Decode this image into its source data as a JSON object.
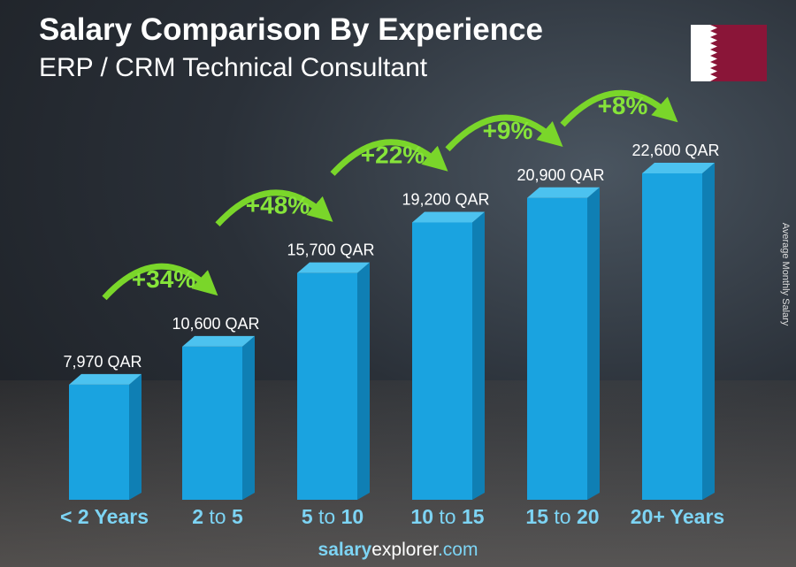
{
  "title": "Salary Comparison By Experience",
  "subtitle": "ERP / CRM Technical Consultant",
  "y_axis_label": "Average Monthly Salary",
  "footer": {
    "bold": "salary",
    "rest": "explorer",
    "tld": ".com"
  },
  "colors": {
    "bar": "#1aa3e0",
    "bar_side": "#0f7fb4",
    "bar_top": "#4cc2ef",
    "arrow": "#7ad62a",
    "label": "#7dd4f4"
  },
  "chart_data": {
    "type": "bar",
    "title": "Salary Comparison By Experience",
    "ylabel": "Average Monthly Salary",
    "categories": [
      [
        "< 2 Years"
      ],
      [
        "2",
        "to",
        "5"
      ],
      [
        "5",
        "to",
        "10"
      ],
      [
        "10",
        "to",
        "15"
      ],
      [
        "15",
        "to",
        "20"
      ],
      [
        "20+ Years"
      ]
    ],
    "category_labels": [
      "< 2 Years",
      "2 to 5",
      "5 to 10",
      "10 to 15",
      "15 to 20",
      "20+ Years"
    ],
    "values": [
      7970,
      10600,
      15700,
      19200,
      20900,
      22600
    ],
    "value_labels": [
      "7,970 QAR",
      "10,600 QAR",
      "15,700 QAR",
      "19,200 QAR",
      "20,900 QAR",
      "22,600 QAR"
    ],
    "changes": [
      "+34%",
      "+48%",
      "+22%",
      "+9%",
      "+8%"
    ],
    "unit": "QAR",
    "ylim": [
      0,
      22600
    ]
  }
}
